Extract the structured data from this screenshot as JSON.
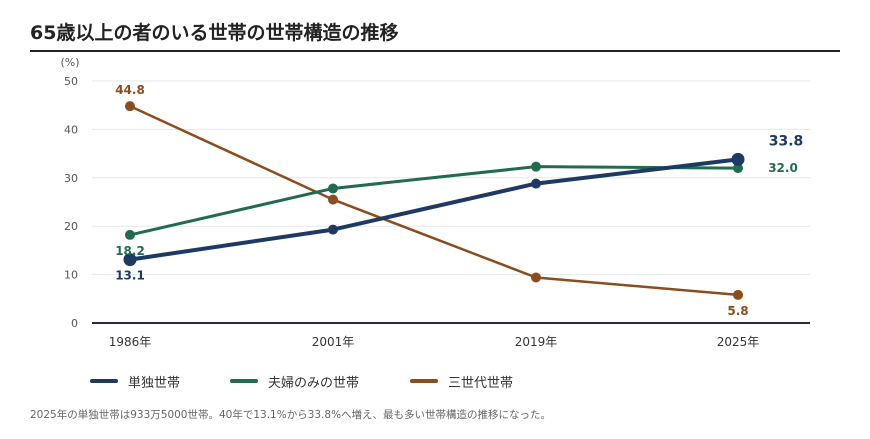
{
  "title": "65歳以上の者のいる世帯の世帯構造の推移",
  "note": "2025年の単独世帯は933万5000世帯。40年で13.1%から33.8%へ増え、最も多い世帯構造の推移になった。",
  "colors": {
    "single": "#1e3a64",
    "couple": "#226b4f",
    "three_gen": "#8b4d1e",
    "grid": "#e3e8e8",
    "axis": "#1f2f45"
  },
  "chart_data": {
    "type": "line",
    "ylabel": "(%)",
    "ylim": [
      0,
      50
    ],
    "yticks": [
      "0",
      "10",
      "20",
      "30",
      "40",
      "50"
    ],
    "categories": [
      "1986年",
      "2001年",
      "2019年",
      "2025年"
    ],
    "grid": true,
    "legend": "bottom-left",
    "series": [
      {
        "name": "単独世帯",
        "values": [
          13.1,
          19.3,
          28.8,
          33.8
        ],
        "color": "#1e3a64",
        "labels": [
          "13.1",
          "",
          "",
          "33.8"
        ]
      },
      {
        "name": "夫婦のみの世帯",
        "values": [
          18.2,
          27.8,
          32.3,
          32.0
        ],
        "color": "#226b4f",
        "labels": [
          "18.2",
          "",
          "",
          "32.0"
        ]
      },
      {
        "name": "三世代世帯",
        "values": [
          44.8,
          25.5,
          9.4,
          5.8
        ],
        "color": "#8b4d1e",
        "labels": [
          "44.8",
          "",
          "",
          "5.8"
        ]
      }
    ]
  }
}
